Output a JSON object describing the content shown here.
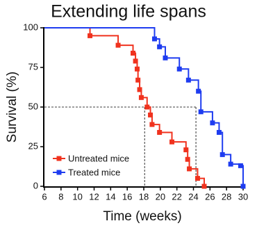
{
  "chart_data": {
    "type": "line",
    "step": true,
    "title": "Extending life spans",
    "xlabel": "Time (weeks)",
    "ylabel": "Survival (%)",
    "xlim": [
      6,
      30
    ],
    "ylim": [
      0,
      100
    ],
    "xticks": [
      6,
      8,
      10,
      12,
      14,
      16,
      18,
      20,
      22,
      24,
      26,
      28,
      30
    ],
    "yticks": [
      0,
      25,
      50,
      75,
      100
    ],
    "legend": "lower left",
    "reference_lines": {
      "y": 50,
      "x": [
        18.1,
        24.3
      ]
    },
    "series": [
      {
        "name": "Untreated mice",
        "color": "#f0321e",
        "x": [
          6,
          11.5,
          14.9,
          16.7,
          17.0,
          17.2,
          17.3,
          17.5,
          17.7,
          18.4,
          18.8,
          19.0,
          19.9,
          21.4,
          23.1,
          23.3,
          23.5,
          24.5,
          25.3
        ],
        "values": [
          100,
          95,
          89,
          84,
          79,
          74,
          67,
          61,
          56,
          50,
          45,
          39,
          34,
          28,
          23,
          17,
          11,
          5,
          0
        ]
      },
      {
        "name": "Treated mice",
        "color": "#1e3cf0",
        "x": [
          6,
          19.3,
          19.9,
          20.6,
          22.3,
          23.4,
          24.6,
          24.9,
          26.3,
          27.1,
          27.5,
          28.5,
          29.7,
          30.0
        ],
        "values": [
          100,
          93,
          88,
          81,
          74,
          67,
          60,
          47,
          40,
          34,
          20,
          14,
          13,
          0
        ]
      }
    ]
  }
}
